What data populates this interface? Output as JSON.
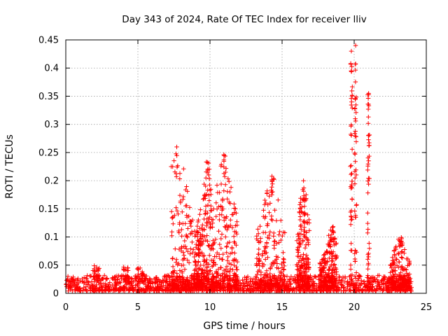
{
  "chart_data": {
    "type": "scatter",
    "title": "Day 343 of 2024, Rate Of TEC Index for receiver lliv",
    "xlabel": "GPS time / hours",
    "ylabel": "ROTI / TECUs",
    "xlim": [
      0,
      25
    ],
    "ylim": [
      0,
      0.45
    ],
    "xticks": [
      "0",
      "5",
      "10",
      "15",
      "20",
      "25"
    ],
    "yticks": [
      "0",
      "0.05",
      "0.1",
      "0.15",
      "0.2",
      "0.25",
      "0.3",
      "0.35",
      "0.4",
      "0.45"
    ],
    "xtick_values": [
      0,
      5,
      10,
      15,
      20,
      25
    ],
    "ytick_values": [
      0,
      0.05,
      0.1,
      0.15,
      0.2,
      0.25,
      0.3,
      0.35,
      0.4,
      0.45
    ],
    "grid": true,
    "marker": "+",
    "color": "#ff0000",
    "x_range_of_data": [
      0,
      24
    ],
    "baseline_level": 0.015,
    "features": [
      {
        "name": "baseline",
        "x_range": [
          0,
          24
        ],
        "y_range": [
          0.005,
          0.04
        ]
      },
      {
        "name": "bump",
        "x_center": 2.1,
        "y_max": 0.05
      },
      {
        "name": "bump",
        "x_center": 4.2,
        "y_max": 0.053
      },
      {
        "name": "bump",
        "x_center": 5.2,
        "y_max": 0.045
      },
      {
        "name": "activity",
        "x_range": [
          7.3,
          9.3
        ],
        "y_max": 0.26,
        "x_peak": 7.7
      },
      {
        "name": "activity",
        "x_range": [
          9.0,
          10.2
        ],
        "y_max": 0.24,
        "x_peak": 9.8
      },
      {
        "name": "activity",
        "x_range": [
          10.2,
          11.9
        ],
        "y_max": 0.25,
        "x_peak": 11.0
      },
      {
        "name": "activity",
        "x_range": [
          13.2,
          15.2
        ],
        "y_max": 0.21,
        "x_peak": 14.3
      },
      {
        "name": "activity",
        "x_range": [
          16.0,
          16.9
        ],
        "y_max": 0.2,
        "x_peak": 16.5
      },
      {
        "name": "activity",
        "x_range": [
          17.6,
          18.8
        ],
        "y_max": 0.12,
        "x_peak": 18.5
      },
      {
        "name": "spike",
        "x_center": 19.8,
        "y_max": 0.43
      },
      {
        "name": "spike",
        "x_center": 20.1,
        "y_max": 0.44
      },
      {
        "name": "spike",
        "x_center": 21.0,
        "y_max": 0.355
      },
      {
        "name": "activity",
        "x_range": [
          22.5,
          23.9
        ],
        "y_max": 0.1,
        "x_peak": 23.2
      }
    ]
  }
}
